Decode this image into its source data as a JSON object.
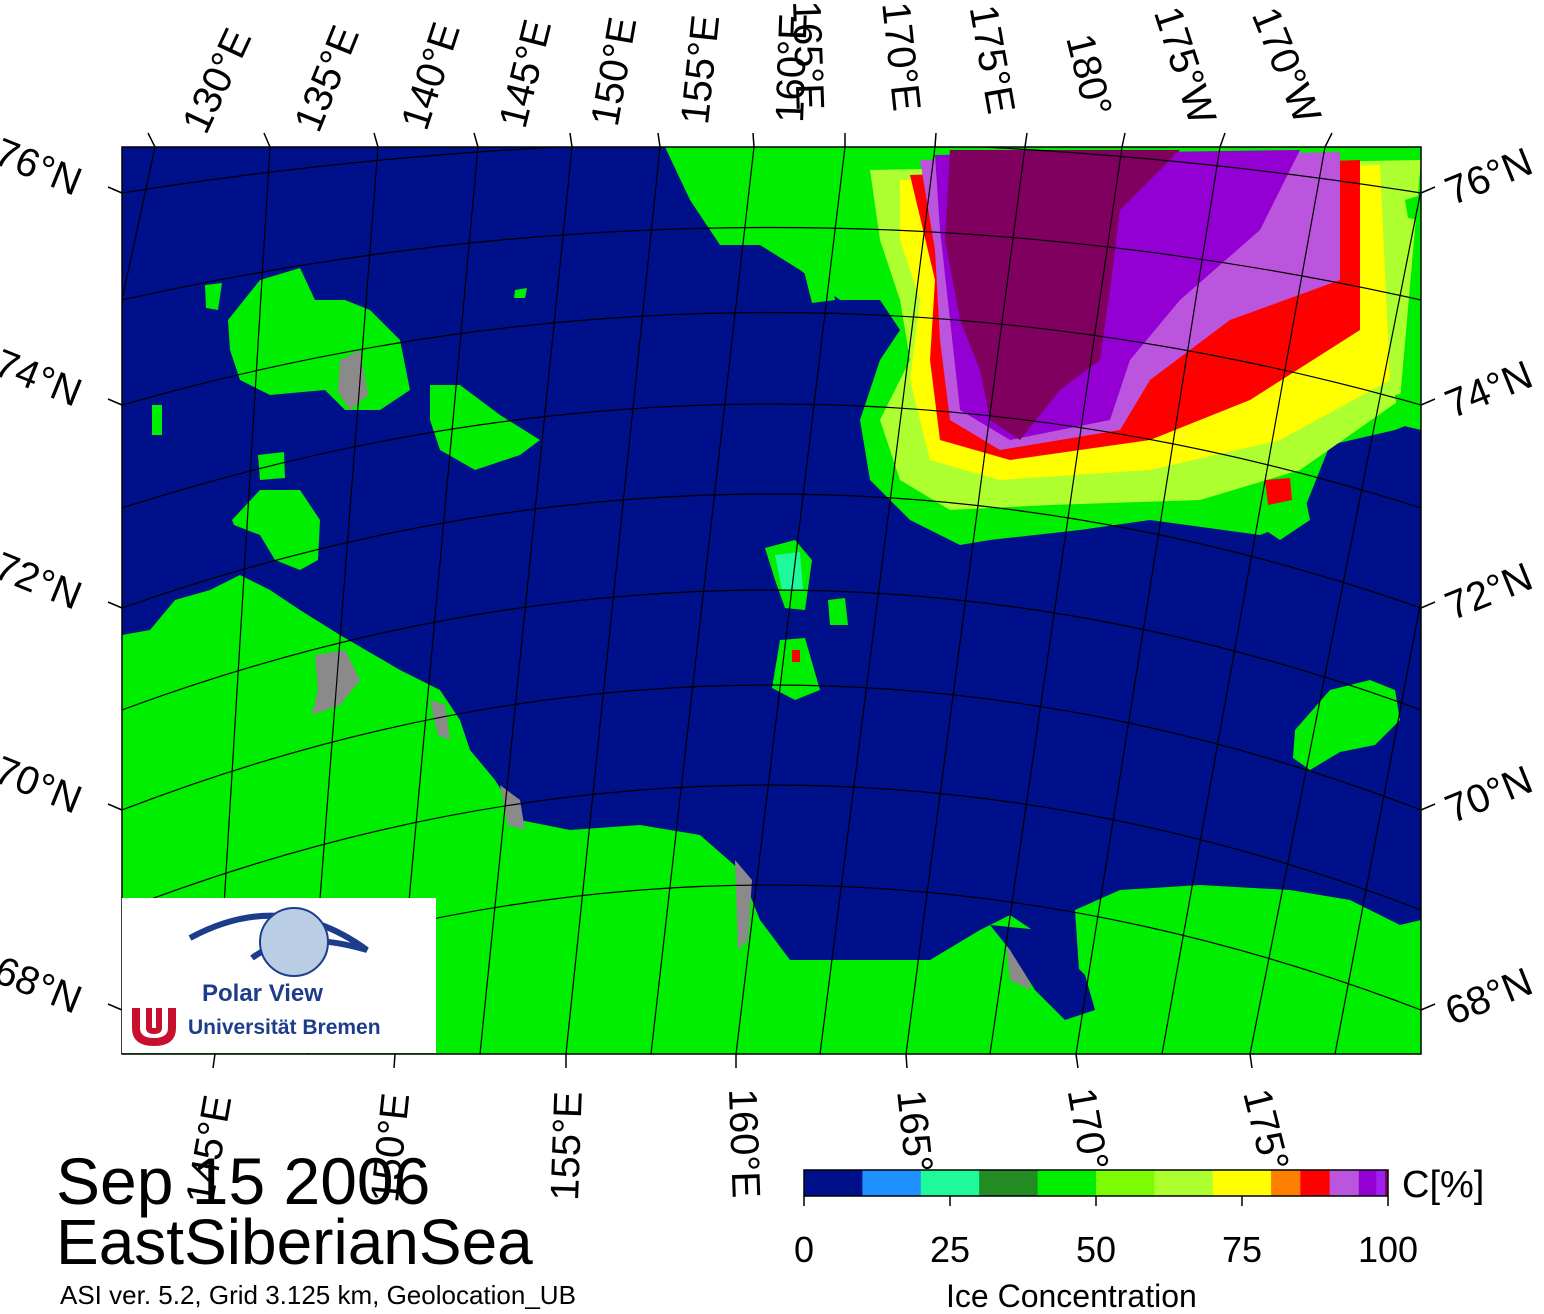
{
  "map": {
    "title_date": "Sep 15 2006",
    "region": "EastSiberianSea",
    "metadata": "ASI ver. 5.2,  Grid 3.125 km, Geolocation_UB",
    "top_lon_labels": [
      "130°E",
      "135°E",
      "140°E",
      "145°E",
      "150°E",
      "155°E",
      "160°E",
      "165°E",
      "170°E",
      "175°E",
      "180°",
      "175°W",
      "170°W"
    ],
    "bottom_lon_labels": [
      "145°E",
      "150°E",
      "155°E",
      "160°E",
      "165°",
      "170°",
      "175°"
    ],
    "left_lat_labels": [
      "76°N",
      "74°N",
      "72°N",
      "70°N",
      "68°N"
    ],
    "right_lat_labels": [
      "76°N",
      "74°N",
      "72°N",
      "70°N",
      "68°N"
    ],
    "colors": {
      "ocean": "#000f8a",
      "land": "#00dd00",
      "coast_gray": "#8a8a8a",
      "grid": "#000000"
    }
  },
  "logo": {
    "name": "Polar View",
    "institution": "Universität Bremen"
  },
  "colorbar": {
    "label": "Ice Concentration",
    "unit": "C[%]",
    "tick_labels": [
      "0",
      "25",
      "50",
      "75",
      "100"
    ],
    "colors": [
      "#000f8a",
      "#1e90ff",
      "#1efa9a",
      "#228b22",
      "#00ee00",
      "#7cfc00",
      "#adff2f",
      "#ffff00",
      "#ff7f00",
      "#ff0000",
      "#bb55dd",
      "#9400d3",
      "#a020f0",
      "#800060"
    ]
  }
}
